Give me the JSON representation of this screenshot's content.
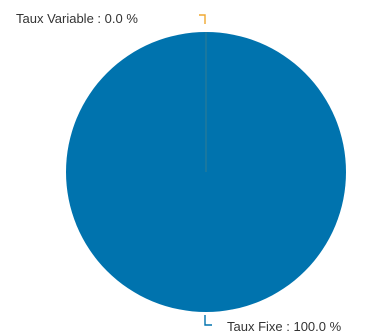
{
  "chart_data": {
    "type": "pie",
    "slices": [
      {
        "label": "Taux Variable : 0.0 %",
        "name": "Taux Variable",
        "value": 0.0,
        "color": "#F0A830"
      },
      {
        "label": "Taux Fixe : 100.0 %",
        "name": "Taux Fixe",
        "value": 100.0,
        "color": "#0073AE"
      }
    ]
  }
}
